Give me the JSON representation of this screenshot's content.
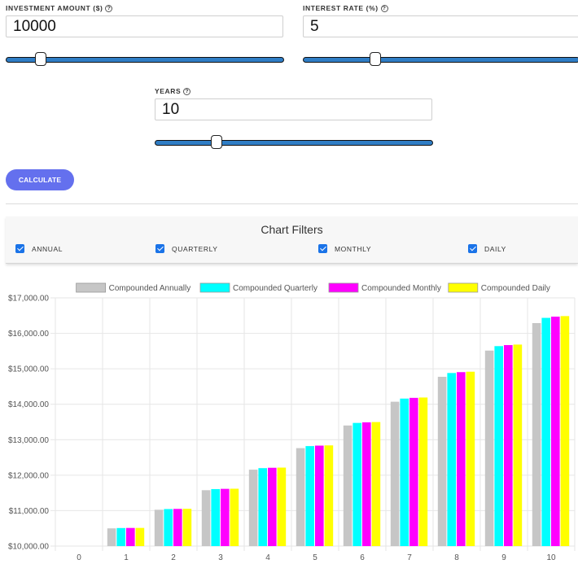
{
  "inputs": {
    "investment": {
      "label": "INVESTMENT AMOUNT ($)",
      "value": "10000",
      "slider_fraction": 0.11
    },
    "rate": {
      "label": "INTEREST RATE (%)",
      "value": "5",
      "slider_fraction": 0.25
    },
    "years": {
      "label": "YEARS",
      "value": "10",
      "slider_fraction": 0.21
    }
  },
  "help_icon": "question-mark-icon",
  "calculate_label": "CALCULATE",
  "filters": {
    "title": "Chart Filters",
    "items": [
      {
        "label": "ANNUAL",
        "checked": true
      },
      {
        "label": "QUARTERLY",
        "checked": true
      },
      {
        "label": "MONTHLY",
        "checked": true
      },
      {
        "label": "DAILY",
        "checked": true
      }
    ]
  },
  "colors": {
    "accent": "#6470ee",
    "slider": "#2f7dc5",
    "checkbox": "#1a73e8"
  },
  "chart_data": {
    "type": "bar",
    "categories": [
      "0",
      "1",
      "2",
      "3",
      "4",
      "5",
      "6",
      "7",
      "8",
      "9",
      "10"
    ],
    "series": [
      {
        "name": "Compounded Annually",
        "color": "#c6c6c6",
        "values": [
          10000,
          10500,
          11025,
          11576.25,
          12155.06,
          12762.82,
          13400.96,
          14071.0,
          14774.55,
          15513.28,
          16288.95
        ]
      },
      {
        "name": "Compounded Quarterly",
        "color": "#00ffff",
        "values": [
          10000,
          10509.45,
          11044.86,
          11607.55,
          12198.9,
          12820.37,
          13473.51,
          14159.93,
          14881.31,
          15639.44,
          16436.19
        ]
      },
      {
        "name": "Compounded Monthly",
        "color": "#ff00ff",
        "values": [
          10000,
          10511.62,
          11049.41,
          11614.72,
          12208.95,
          12833.59,
          13490.18,
          14180.36,
          14905.85,
          15668.47,
          16470.09
        ]
      },
      {
        "name": "Compounded Daily",
        "color": "#ffff00",
        "values": [
          10000,
          10512.67,
          11051.63,
          11618.22,
          12213.86,
          12840.03,
          13498.31,
          14190.33,
          14917.83,
          15682.63,
          16486.65
        ]
      }
    ],
    "ylim": [
      10000,
      17000
    ],
    "yticks": [
      10000,
      11000,
      12000,
      13000,
      14000,
      15000,
      16000,
      17000
    ],
    "ytick_labels": [
      "$10,000.00",
      "$11,000.00",
      "$12,000.00",
      "$13,000.00",
      "$14,000.00",
      "$15,000.00",
      "$16,000.00",
      "$17,000.00"
    ],
    "grid": true,
    "legend_position": "top"
  }
}
